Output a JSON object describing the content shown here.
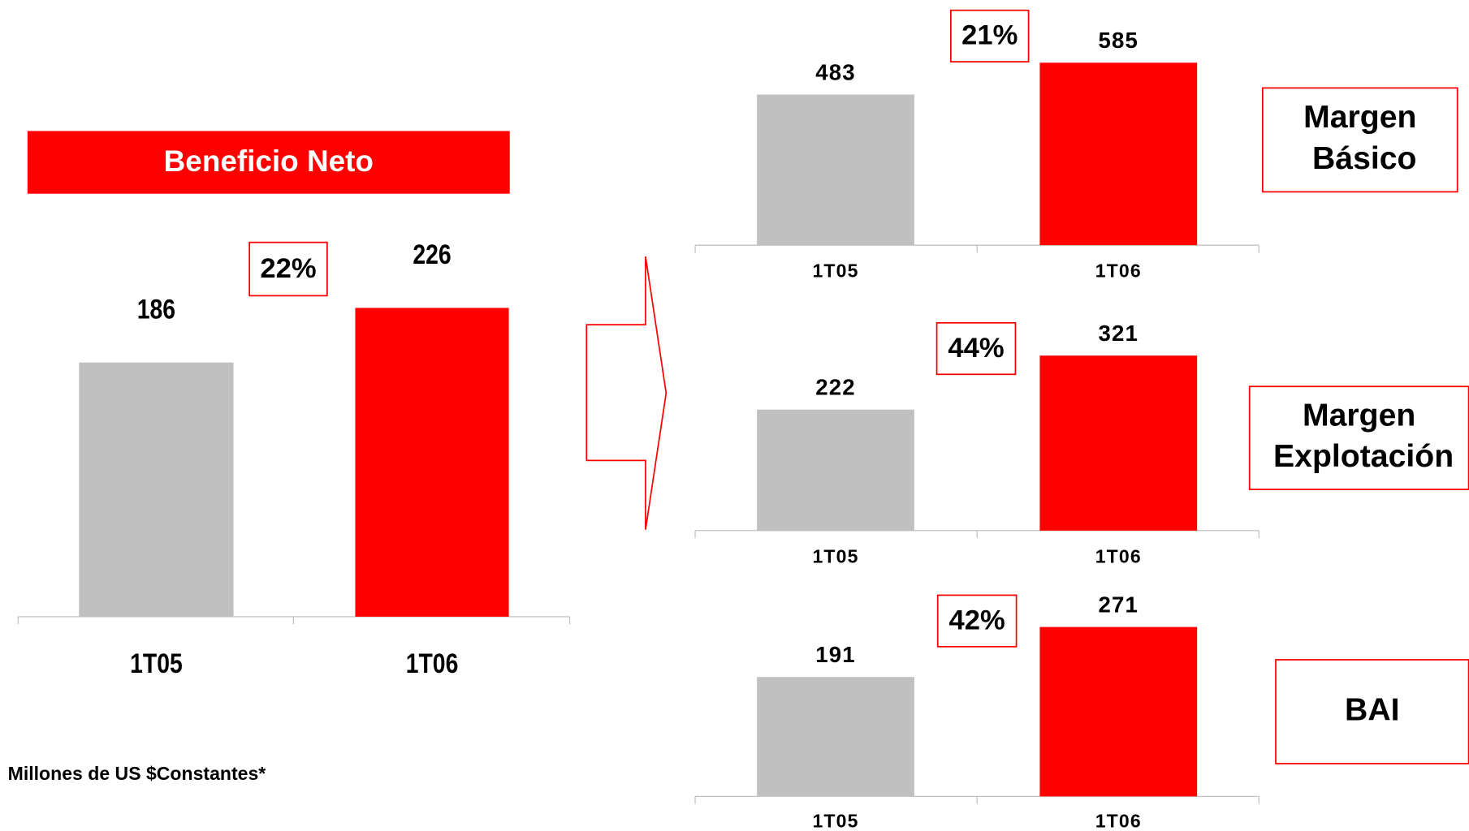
{
  "chart_data": [
    {
      "type": "bar",
      "title": "Beneficio Neto",
      "annotation": "22%",
      "categories": [
        "1T05",
        "1T06"
      ],
      "values": [
        186,
        226
      ],
      "colors": [
        "#c0c0c0",
        "#ff0000"
      ]
    },
    {
      "type": "bar",
      "title": "Margen Básico",
      "annotation": "21%",
      "categories": [
        "1T05",
        "1T06"
      ],
      "values": [
        483,
        585
      ],
      "colors": [
        "#c0c0c0",
        "#ff0000"
      ]
    },
    {
      "type": "bar",
      "title": "Margen Explotación",
      "annotation": "44%",
      "categories": [
        "1T05",
        "1T06"
      ],
      "values": [
        222,
        321
      ],
      "colors": [
        "#c0c0c0",
        "#ff0000"
      ]
    },
    {
      "type": "bar",
      "title": "BAI",
      "annotation": "42%",
      "categories": [
        "1T05",
        "1T06"
      ],
      "values": [
        191,
        271
      ],
      "colors": [
        "#c0c0c0",
        "#ff0000"
      ]
    }
  ],
  "footnote": "Millones de US $Constantes*"
}
